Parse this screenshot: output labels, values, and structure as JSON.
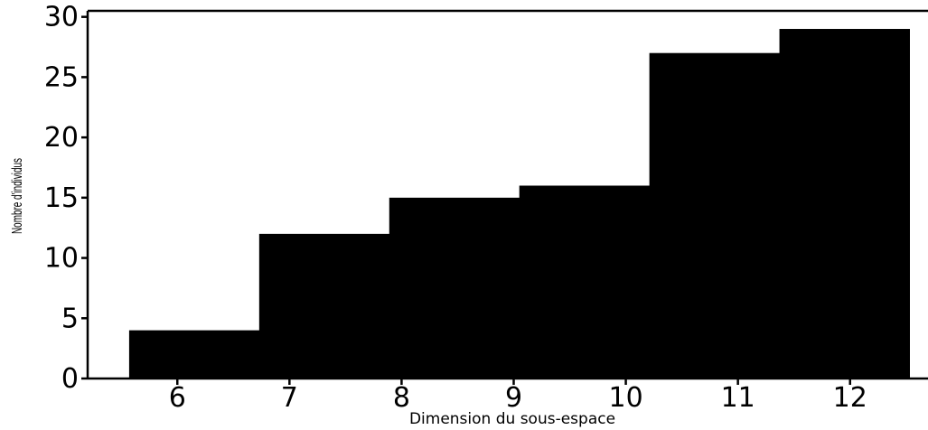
{
  "chart_data": {
    "type": "bar",
    "bins": [
      {
        "x0": 5.57,
        "x1": 6.73,
        "count": 4
      },
      {
        "x0": 6.73,
        "x1": 7.89,
        "count": 12
      },
      {
        "x0": 7.89,
        "x1": 9.05,
        "count": 15
      },
      {
        "x0": 9.05,
        "x1": 10.21,
        "count": 16
      },
      {
        "x0": 10.21,
        "x1": 11.37,
        "count": 27
      },
      {
        "x0": 11.37,
        "x1": 12.53,
        "count": 29
      }
    ],
    "xticks": [
      "6",
      "7",
      "8",
      "9",
      "10",
      "11",
      "12"
    ],
    "yticks": [
      "0",
      "5",
      "10",
      "15",
      "20",
      "25",
      "30"
    ],
    "xlim": [
      5.2,
      12.8
    ],
    "ylim": [
      0,
      30.5
    ],
    "xlabel": "Dimension du sous-espace",
    "ylabel": "Nombre d'individus",
    "grid": false,
    "bar_color": "#000000"
  }
}
